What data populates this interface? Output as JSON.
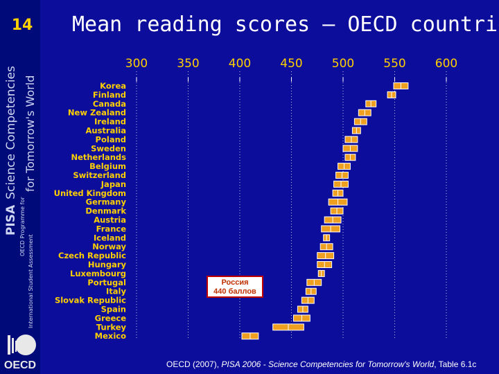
{
  "slide_number": "14",
  "sidebar": {
    "title_brand": "PISA",
    "title_rest": "Science Competencies",
    "subtitle": "for Tomorrow's World",
    "program_line1": "OECD Programme for",
    "program_line2": "International Student Assessment",
    "logo_text": "OECD"
  },
  "callout": {
    "line1": "Россия",
    "line2": "440 баллов"
  },
  "source": {
    "prefix": "OECD (2007), ",
    "title": "PISA 2006 - Science Competencies for Tomorrow's World",
    "suffix": ", Table 6.1c"
  },
  "colors": {
    "background": "#0d0d9c",
    "bar": "#f0a020",
    "bar_border": "#ffffff",
    "label": "#ffd000",
    "grid": "#ffffff"
  },
  "chart_data": {
    "type": "bar",
    "orientation": "horizontal",
    "title": "Mean reading scores – OECD countries",
    "x_ticks": [
      300,
      350,
      400,
      450,
      500,
      550,
      600
    ],
    "xlim": [
      300,
      600
    ],
    "grid": true,
    "categories": [
      "Korea",
      "Finland",
      "Canada",
      "New Zealand",
      "Ireland",
      "Australia",
      "Poland",
      "Sweden",
      "Netherlands",
      "Belgium",
      "Switzerland",
      "Japan",
      "United Kingdom",
      "Germany",
      "Denmark",
      "Austria",
      "France",
      "Iceland",
      "Norway",
      "Czech Republic",
      "Hungary",
      "Luxembourg",
      "Portugal",
      "Italy",
      "Slovak Republic",
      "Spain",
      "Greece",
      "Turkey",
      "Mexico"
    ],
    "mean": [
      556,
      547,
      527,
      521,
      517,
      513,
      508,
      507,
      507,
      501,
      499,
      498,
      495,
      495,
      494,
      490,
      488,
      484,
      484,
      483,
      482,
      479,
      472,
      469,
      466,
      461,
      460,
      447,
      410
    ],
    "ci_low": [
      549,
      543,
      522,
      515,
      511,
      509,
      502,
      500,
      502,
      495,
      493,
      491,
      490,
      486,
      488,
      482,
      479,
      481,
      478,
      475,
      475,
      476,
      465,
      464,
      460,
      456,
      452,
      432,
      402
    ],
    "ci_high": [
      563,
      551,
      532,
      527,
      523,
      517,
      514,
      514,
      512,
      507,
      505,
      505,
      500,
      504,
      500,
      498,
      497,
      487,
      490,
      491,
      489,
      482,
      479,
      474,
      472,
      466,
      468,
      462,
      418
    ]
  }
}
